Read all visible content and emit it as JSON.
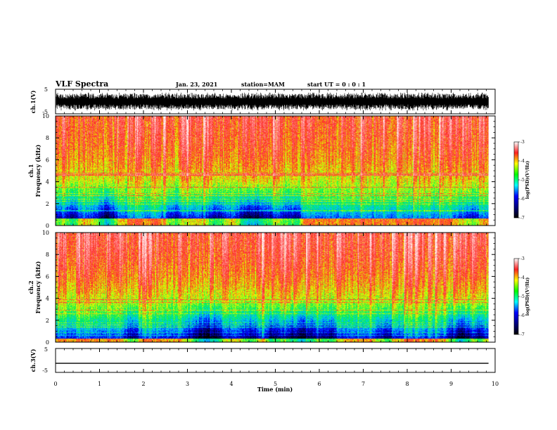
{
  "header": {
    "title": "VLF Spectra",
    "date": "Jan. 23, 2021",
    "station": "station=MAM",
    "start_ut": "start  UT =  0 : 0 : 1"
  },
  "colors": {
    "spectrogram_scale": [
      "#ffffff",
      "#ff2020",
      "#ffff00",
      "#00ff00",
      "#00ffff",
      "#0000ff",
      "#000080",
      "#000000"
    ],
    "waveform": "#000000"
  },
  "chart_data": [
    {
      "type": "line",
      "name": "ch1-waveform",
      "ylabel": "ch.1(V)",
      "ylim": [
        -5,
        5
      ],
      "y_ticks": [
        "5",
        "-5"
      ],
      "trace": "dense black oscillating waveform filling roughly ±3 V"
    },
    {
      "type": "heatmap",
      "name": "ch1-spectrogram",
      "ylabel": "ch.1 Frequency (kHz)",
      "ylim": [
        0,
        10
      ],
      "y_ticks": [
        "0",
        "2",
        "4",
        "6",
        "8",
        "10"
      ],
      "xlim": [
        0,
        10
      ],
      "colorbar": {
        "label": "log(PSD)(V²/Hz)",
        "range": [
          -7,
          -3
        ],
        "ticks": [
          "-3",
          "-4",
          "-5",
          "-6",
          "-7"
        ]
      }
    },
    {
      "type": "heatmap",
      "name": "ch2-spectrogram",
      "ylabel": "ch.2 Frequency (kHz)",
      "ylim": [
        0,
        10
      ],
      "y_ticks": [
        "0",
        "2",
        "4",
        "6",
        "8",
        "10"
      ],
      "xlim": [
        0,
        10
      ],
      "colorbar": {
        "label": "log(PSD)(V²/Hz)",
        "range": [
          -7,
          -3
        ],
        "ticks": [
          "-3",
          "-4",
          "-5",
          "-6",
          "-7"
        ]
      }
    },
    {
      "type": "line",
      "name": "ch3-waveform",
      "ylabel": "ch.3(V)",
      "ylim": [
        -5,
        5
      ],
      "y_ticks": [
        "5",
        "-5"
      ],
      "value": -1.2
    }
  ],
  "x_axis": {
    "label": "Time (min)",
    "range": [
      0,
      10
    ],
    "ticks": [
      "0",
      "1",
      "2",
      "3",
      "4",
      "5",
      "6",
      "7",
      "8",
      "9",
      "10"
    ],
    "data_end": 9.85
  }
}
